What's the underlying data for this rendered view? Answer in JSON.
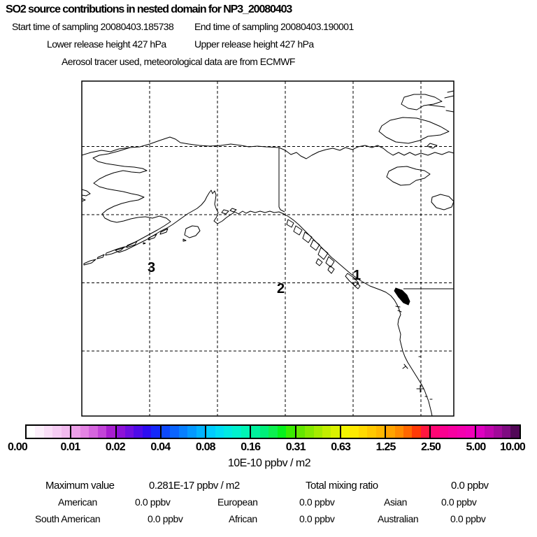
{
  "header": {
    "title": "SO2 source contributions in nested domain for NP3_20080403",
    "start_time": "Start time of sampling 20080403.185738",
    "end_time": "End time of sampling 20080403.190001",
    "lower_release": "Lower release height  427 hPa",
    "upper_release": "Upper release height  427 hPa",
    "tracer_note": "Aerosol tracer used, meteorological data are from ECMWF"
  },
  "map": {
    "markers": [
      {
        "label": "1"
      },
      {
        "label": "2"
      },
      {
        "label": "3"
      }
    ]
  },
  "colorbar": {
    "ticks": [
      "0.00",
      "0.01",
      "0.02",
      "0.04",
      "0.08",
      "0.16",
      "0.31",
      "0.63",
      "1.25",
      "2.50",
      "5.00",
      "10.00"
    ],
    "unit": "10E-10 ppbv / m2",
    "segments": [
      [
        "#ffffff",
        "#fceffb",
        "#f9def7",
        "#f5ccf3",
        "#f1baee"
      ],
      [
        "#ec9fe8",
        "#e383e3",
        "#d565de",
        "#c244d8",
        "#a81fd0"
      ],
      [
        "#8d12d8",
        "#6f0ee0",
        "#4f0ae8",
        "#2d0cf2",
        "#1428fa"
      ],
      [
        "#0d49fc",
        "#0a64fd",
        "#077ffe",
        "#0499ff",
        "#02b3ff"
      ],
      [
        "#00ccff",
        "#00ddf4",
        "#00e9e2",
        "#00f1cd",
        "#00f5b5"
      ],
      [
        "#00f09d",
        "#00ef7a",
        "#0cef4f",
        "#06f01c",
        "#3bec00"
      ],
      [
        "#64e700",
        "#86e900",
        "#a5eb00",
        "#c2ee00",
        "#daf100"
      ],
      [
        "#f2f400",
        "#fde900",
        "#ffd900",
        "#ffc800",
        "#ffb700"
      ],
      [
        "#ffa300",
        "#ff8a00",
        "#ff6700",
        "#ff3a06",
        "#ff173f"
      ],
      [
        "#ff0673",
        "#fb0090",
        "#f700a1",
        "#f400ae",
        "#f100b9"
      ],
      [
        "#de00c0",
        "#c005ad",
        "#a10a99",
        "#7f0c82",
        "#520857"
      ]
    ]
  },
  "footer": {
    "max_label": "Maximum value",
    "max_value": "0.281E-17 ppbv / m2",
    "total_label": "Total mixing ratio",
    "total_value": "0.0 ppbv",
    "regions": [
      {
        "name": "American",
        "value": "0.0 ppbv"
      },
      {
        "name": "European",
        "value": "0.0 ppbv"
      },
      {
        "name": "Asian",
        "value": "0.0 ppbv"
      },
      {
        "name": "South American",
        "value": "0.0 ppbv"
      },
      {
        "name": "African",
        "value": "0.0 ppbv"
      },
      {
        "name": "Australian",
        "value": "0.0 ppbv"
      }
    ]
  },
  "chart_data": {
    "type": "heatmap",
    "title": "SO2 source contributions in nested domain for NP3_20080403",
    "subtitle": [
      "Start time of sampling 20080403.185738",
      "End time of sampling 20080403.190001",
      "Lower release height 427 hPa",
      "Upper release height 427 hPa",
      "Aerosol tracer used, meteorological data are from ECMWF"
    ],
    "colorbar_levels": [
      0.0,
      0.01,
      0.02,
      0.04,
      0.08,
      0.16,
      0.31,
      0.63,
      1.25,
      2.5,
      5.0,
      10.0
    ],
    "colorbar_unit": "10E-10 ppbv / m2",
    "maximum_value": "0.281E-17 ppbv / m2",
    "total_mixing_ratio": "0.0 ppbv",
    "source_markers": [
      "1",
      "2",
      "3"
    ],
    "region_mixing_ratios_ppbv": {
      "American": 0.0,
      "European": 0.0,
      "Asian": 0.0,
      "South American": 0.0,
      "African": 0.0,
      "Australian": 0.0
    },
    "map_extent_note": "Coastline map of Alaska, northwest Canada and US west coast with dashed lat/lon gridlines; no concentration field above 0 shown",
    "grid": true,
    "legend_position": "bottom"
  }
}
